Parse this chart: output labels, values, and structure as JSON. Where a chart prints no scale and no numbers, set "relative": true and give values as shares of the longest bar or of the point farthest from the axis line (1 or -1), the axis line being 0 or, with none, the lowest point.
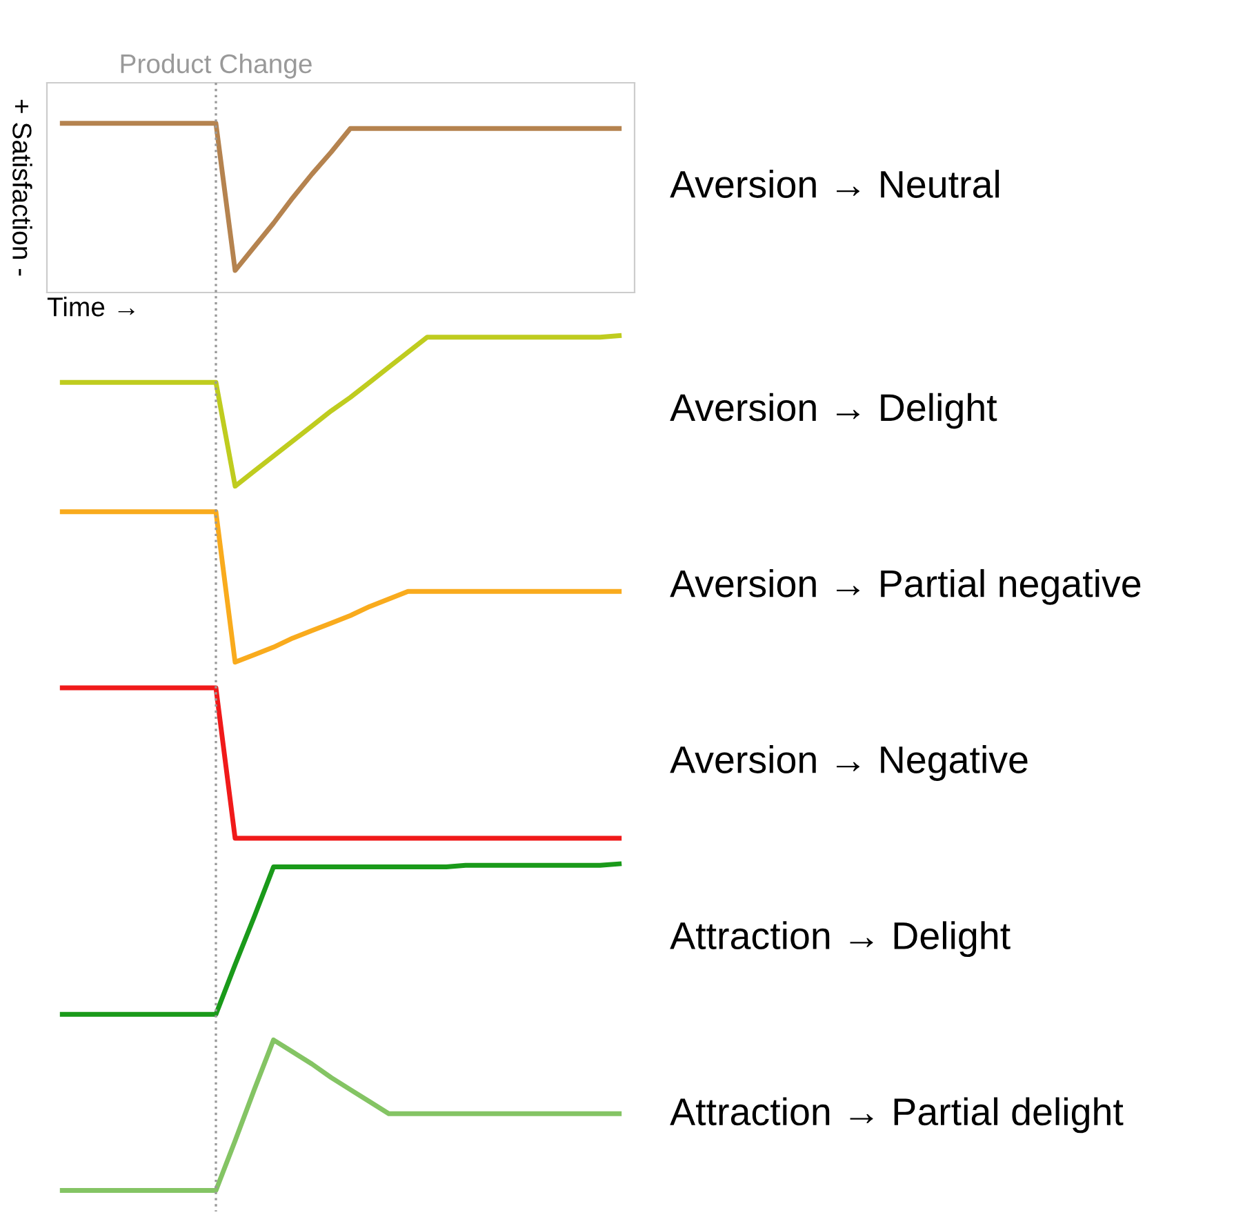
{
  "chart_data": [
    {
      "type": "line",
      "relative": true,
      "xlabel": "Time →",
      "ylabel": "+ Satisfaction -",
      "tick_labels": false,
      "categories": [
        null,
        null,
        null,
        null,
        null,
        null,
        null,
        null,
        null,
        null,
        null,
        null,
        null,
        null,
        null,
        null,
        null,
        null,
        null,
        null,
        null,
        null,
        null,
        null,
        null,
        null,
        null,
        null,
        null,
        null
      ],
      "annotations": [
        "Product Change"
      ],
      "series": [
        {
          "name": "Aversion → Neutral",
          "color": "#b5834f",
          "values": [
            1,
            1,
            1,
            1,
            1,
            1,
            1,
            1,
            1,
            0.13,
            0.27,
            0.41,
            0.56,
            0.7,
            0.83,
            0.97,
            0.97,
            0.97,
            0.97,
            0.97,
            0.97,
            0.97,
            0.97,
            0.97,
            0.97,
            0.97,
            0.97,
            0.97,
            0.97,
            0.97
          ]
        }
      ]
    },
    {
      "type": "line",
      "relative": true,
      "tick_labels": false,
      "categories": [
        null,
        null,
        null,
        null,
        null,
        null,
        null,
        null,
        null,
        null,
        null,
        null,
        null,
        null,
        null,
        null,
        null,
        null,
        null,
        null,
        null,
        null,
        null,
        null,
        null,
        null,
        null,
        null,
        null,
        null
      ],
      "series": [
        {
          "name": "Aversion → Delight",
          "color": "#bfcc1f",
          "values": [
            0.69,
            0.69,
            0.69,
            0.69,
            0.69,
            0.69,
            0.69,
            0.69,
            0.69,
            0,
            0.1,
            0.2,
            0.3,
            0.4,
            0.5,
            0.59,
            0.69,
            0.79,
            0.89,
            0.99,
            0.99,
            0.99,
            0.99,
            0.99,
            0.99,
            0.99,
            0.99,
            0.99,
            0.99,
            1
          ]
        }
      ]
    },
    {
      "type": "line",
      "relative": true,
      "tick_labels": false,
      "categories": [
        null,
        null,
        null,
        null,
        null,
        null,
        null,
        null,
        null,
        null,
        null,
        null,
        null,
        null,
        null,
        null,
        null,
        null,
        null,
        null,
        null,
        null,
        null,
        null,
        null,
        null,
        null,
        null,
        null,
        null
      ],
      "series": [
        {
          "name": "Aversion → Partial negative",
          "color": "#f9ab1d",
          "values": [
            1,
            1,
            1,
            1,
            1,
            1,
            1,
            1,
            1,
            0,
            0.05,
            0.1,
            0.16,
            0.21,
            0.26,
            0.31,
            0.37,
            0.42,
            0.47,
            0.47,
            0.47,
            0.47,
            0.47,
            0.47,
            0.47,
            0.47,
            0.47,
            0.47,
            0.47,
            0.47
          ]
        }
      ]
    },
    {
      "type": "line",
      "relative": true,
      "tick_labels": false,
      "categories": [
        null,
        null,
        null,
        null,
        null,
        null,
        null,
        null,
        null,
        null,
        null,
        null,
        null,
        null,
        null,
        null,
        null,
        null,
        null,
        null,
        null,
        null,
        null,
        null,
        null,
        null,
        null,
        null,
        null,
        null
      ],
      "series": [
        {
          "name": "Aversion → Negative",
          "color": "#f01a1a",
          "values": [
            1,
            1,
            1,
            1,
            1,
            1,
            1,
            1,
            1,
            0,
            0,
            0,
            0,
            0,
            0,
            0,
            0,
            0,
            0,
            0,
            0,
            0,
            0,
            0,
            0,
            0,
            0,
            0,
            0,
            0
          ]
        }
      ]
    },
    {
      "type": "line",
      "relative": true,
      "tick_labels": false,
      "categories": [
        null,
        null,
        null,
        null,
        null,
        null,
        null,
        null,
        null,
        null,
        null,
        null,
        null,
        null,
        null,
        null,
        null,
        null,
        null,
        null,
        null,
        null,
        null,
        null,
        null,
        null,
        null,
        null,
        null,
        null
      ],
      "series": [
        {
          "name": "Attraction → Delight",
          "color": "#1a9a1a",
          "values": [
            0,
            0,
            0,
            0,
            0,
            0,
            0,
            0,
            0,
            0.33,
            0.65,
            0.98,
            0.98,
            0.98,
            0.98,
            0.98,
            0.98,
            0.98,
            0.98,
            0.98,
            0.98,
            0.99,
            0.99,
            0.99,
            0.99,
            0.99,
            0.99,
            0.99,
            0.99,
            1
          ]
        }
      ]
    },
    {
      "type": "line",
      "relative": true,
      "tick_labels": false,
      "categories": [
        null,
        null,
        null,
        null,
        null,
        null,
        null,
        null,
        null,
        null,
        null,
        null,
        null,
        null,
        null,
        null,
        null,
        null,
        null,
        null,
        null,
        null,
        null,
        null,
        null,
        null,
        null,
        null,
        null,
        null
      ],
      "series": [
        {
          "name": "Attraction → Partial delight",
          "color": "#84c464",
          "values": [
            0,
            0,
            0,
            0,
            0,
            0,
            0,
            0,
            0,
            0.33,
            0.67,
            1,
            0.92,
            0.84,
            0.75,
            0.67,
            0.59,
            0.51,
            0.51,
            0.51,
            0.51,
            0.51,
            0.51,
            0.51,
            0.51,
            0.51,
            0.51,
            0.51,
            0.51,
            0.51
          ]
        }
      ]
    }
  ]
}
